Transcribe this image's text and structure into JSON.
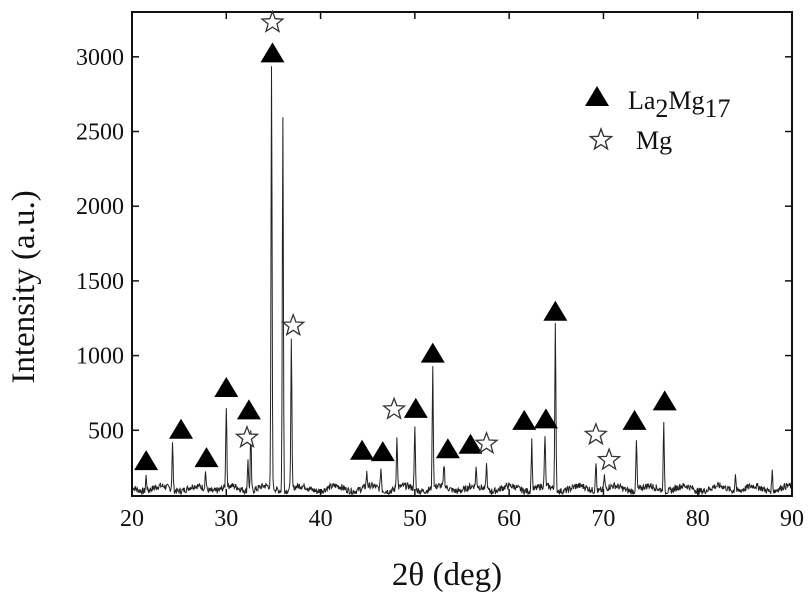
{
  "chart_data": {
    "type": "line",
    "xlabel": "2θ (deg)",
    "ylabel": "Intensity (a.u.)",
    "xlim": [
      20,
      90
    ],
    "ylim": [
      60,
      3300
    ],
    "xticks": [
      20,
      30,
      40,
      50,
      60,
      70,
      80,
      90
    ],
    "yticks": [
      500,
      1000,
      1500,
      2000,
      2500,
      3000
    ],
    "grid": false,
    "legend_position": "top-right",
    "baseline": 110,
    "peaks": [
      {
        "x": 21.5,
        "y": 210
      },
      {
        "x": 24.3,
        "y": 420
      },
      {
        "x": 27.8,
        "y": 230
      },
      {
        "x": 30.0,
        "y": 650
      },
      {
        "x": 32.3,
        "y": 330
      },
      {
        "x": 32.6,
        "y": 500
      },
      {
        "x": 34.8,
        "y": 2930
      },
      {
        "x": 36.0,
        "y": 2610
      },
      {
        "x": 36.9,
        "y": 1100
      },
      {
        "x": 44.9,
        "y": 200
      },
      {
        "x": 46.4,
        "y": 250
      },
      {
        "x": 48.1,
        "y": 470
      },
      {
        "x": 50.0,
        "y": 530
      },
      {
        "x": 51.9,
        "y": 910
      },
      {
        "x": 53.1,
        "y": 260
      },
      {
        "x": 56.5,
        "y": 230
      },
      {
        "x": 57.6,
        "y": 280
      },
      {
        "x": 62.4,
        "y": 440
      },
      {
        "x": 63.8,
        "y": 450
      },
      {
        "x": 64.9,
        "y": 1220
      },
      {
        "x": 69.2,
        "y": 310
      },
      {
        "x": 70.1,
        "y": 200
      },
      {
        "x": 73.5,
        "y": 440
      },
      {
        "x": 76.4,
        "y": 550
      },
      {
        "x": 84.0,
        "y": 230
      },
      {
        "x": 87.9,
        "y": 240
      }
    ],
    "markers": [
      {
        "phase": "La2Mg17",
        "symbol": "triangle",
        "x": 21.5,
        "y": 300
      },
      {
        "phase": "La2Mg17",
        "symbol": "triangle",
        "x": 25.2,
        "y": 510
      },
      {
        "phase": "La2Mg17",
        "symbol": "triangle",
        "x": 27.9,
        "y": 320
      },
      {
        "phase": "La2Mg17",
        "symbol": "triangle",
        "x": 30.0,
        "y": 790
      },
      {
        "phase": "La2Mg17",
        "symbol": "triangle",
        "x": 32.4,
        "y": 640
      },
      {
        "phase": "La2Mg17",
        "symbol": "triangle",
        "x": 34.9,
        "y": 3030
      },
      {
        "phase": "La2Mg17",
        "symbol": "triangle",
        "x": 44.4,
        "y": 370
      },
      {
        "phase": "La2Mg17",
        "symbol": "triangle",
        "x": 46.6,
        "y": 360
      },
      {
        "phase": "La2Mg17",
        "symbol": "triangle",
        "x": 50.1,
        "y": 650
      },
      {
        "phase": "La2Mg17",
        "symbol": "triangle",
        "x": 51.9,
        "y": 1020
      },
      {
        "phase": "La2Mg17",
        "symbol": "triangle",
        "x": 53.5,
        "y": 380
      },
      {
        "phase": "La2Mg17",
        "symbol": "triangle",
        "x": 55.9,
        "y": 410
      },
      {
        "phase": "La2Mg17",
        "symbol": "triangle",
        "x": 61.6,
        "y": 570
      },
      {
        "phase": "La2Mg17",
        "symbol": "triangle",
        "x": 63.9,
        "y": 580
      },
      {
        "phase": "La2Mg17",
        "symbol": "triangle",
        "x": 64.9,
        "y": 1300
      },
      {
        "phase": "La2Mg17",
        "symbol": "triangle",
        "x": 73.3,
        "y": 570
      },
      {
        "phase": "La2Mg17",
        "symbol": "triangle",
        "x": 76.5,
        "y": 700
      },
      {
        "phase": "Mg",
        "symbol": "star",
        "x": 34.9,
        "y": 3230
      },
      {
        "phase": "Mg",
        "symbol": "star",
        "x": 37.1,
        "y": 1200
      },
      {
        "phase": "Mg",
        "symbol": "star",
        "x": 32.2,
        "y": 450
      },
      {
        "phase": "Mg",
        "symbol": "star",
        "x": 47.8,
        "y": 640
      },
      {
        "phase": "Mg",
        "symbol": "star",
        "x": 57.6,
        "y": 410
      },
      {
        "phase": "Mg",
        "symbol": "star",
        "x": 69.2,
        "y": 470
      },
      {
        "phase": "Mg",
        "symbol": "star",
        "x": 70.6,
        "y": 300
      }
    ],
    "legend": [
      {
        "symbol": "triangle",
        "label_main": "La",
        "sub1": "2",
        "mid": "Mg",
        "sub2": "17"
      },
      {
        "symbol": "star",
        "label_main": "Mg"
      }
    ],
    "colors": {
      "line": "#222222",
      "axis": "#111111",
      "marker_fill": "#000000",
      "star_stroke": "#333333"
    }
  }
}
